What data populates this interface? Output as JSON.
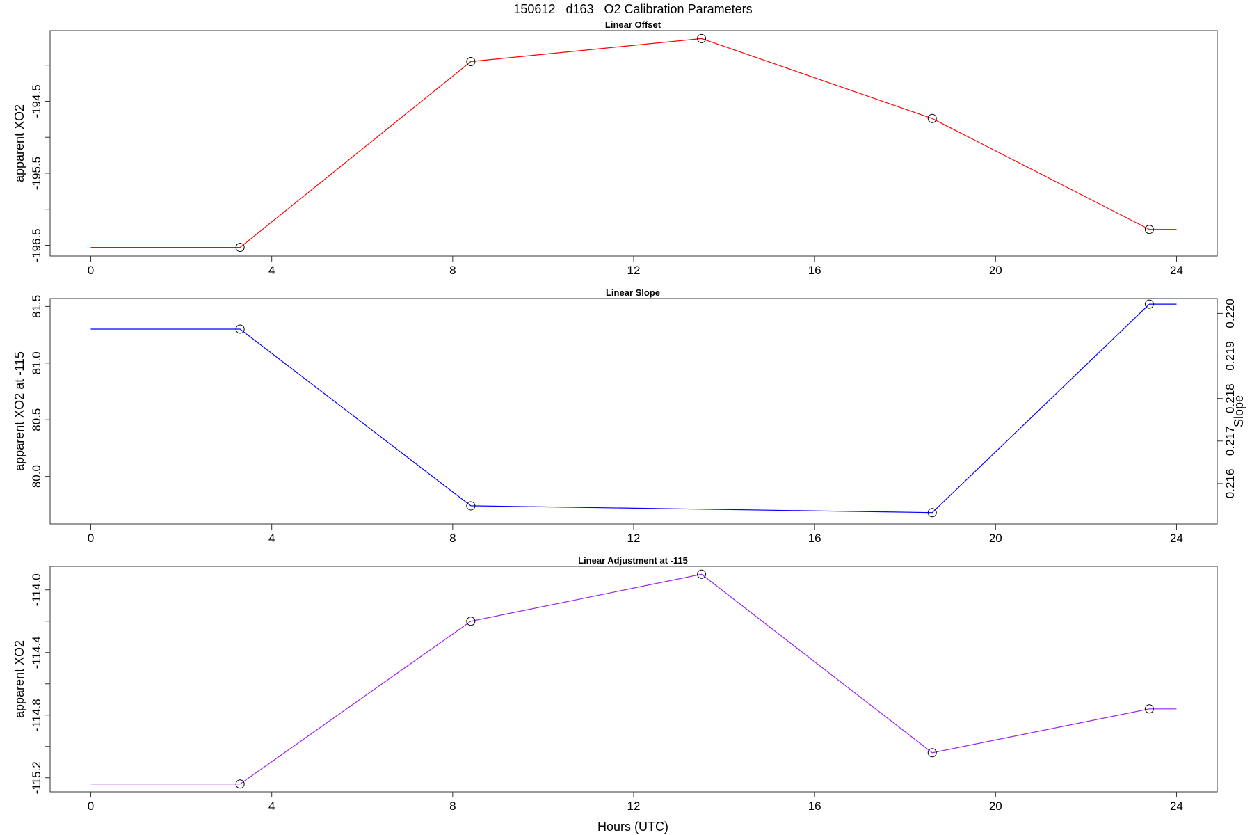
{
  "main_title": "150612   d163   O2 Calibration Parameters",
  "xlabel": "Hours (UTC)",
  "chart_data": [
    {
      "type": "line",
      "title": "Linear Offset",
      "ylabel": "apparent XO2",
      "color": "#ff0000",
      "x": [
        0,
        3.3,
        8.4,
        13.5,
        18.6,
        23.4,
        24
      ],
      "y": [
        -196.53,
        -196.53,
        -193.95,
        -193.63,
        -194.74,
        -196.28,
        -196.28
      ],
      "markers_x": [
        3.3,
        8.4,
        13.5,
        18.6,
        23.4
      ],
      "markers_y": [
        -196.53,
        -193.95,
        -193.63,
        -194.74,
        -196.28
      ],
      "xlim": [
        -0.9,
        24.9
      ],
      "ylim": [
        -196.65,
        -193.52
      ],
      "xticks": [
        0,
        4,
        8,
        12,
        16,
        20,
        24
      ],
      "yticks": [
        -196.5,
        -196.0,
        -195.5,
        -195.0,
        -194.5,
        -194.0
      ],
      "ytick_labels": [
        "-196.5",
        "",
        "-195.5",
        "",
        "-194.5",
        ""
      ]
    },
    {
      "type": "line",
      "title": "Linear Slope",
      "ylabel": "apparent XO2 at -115",
      "right_label": "Slope",
      "color": "#0000ff",
      "x": [
        0,
        3.3,
        8.4,
        18.6,
        23.4,
        24
      ],
      "y": [
        81.3,
        81.3,
        79.74,
        79.68,
        81.52,
        81.52
      ],
      "markers_x": [
        3.3,
        8.4,
        18.6,
        23.4
      ],
      "markers_y": [
        81.3,
        79.74,
        79.68,
        81.52
      ],
      "xlim": [
        -0.9,
        24.9
      ],
      "ylim": [
        79.58,
        81.57
      ],
      "xticks": [
        0,
        4,
        8,
        12,
        16,
        20,
        24
      ],
      "yticks": [
        80.0,
        80.5,
        81.0,
        81.5
      ],
      "ytick_labels": [
        "80.0",
        "80.5",
        "81.0",
        "81.5"
      ],
      "right_ylim": [
        0.21505,
        0.22035
      ],
      "right_ticks": [
        0.216,
        0.217,
        0.218,
        0.219,
        0.22
      ],
      "right_tick_labels": [
        "0.216",
        "0.217",
        "0.218",
        "0.219",
        "0.220"
      ]
    },
    {
      "type": "line",
      "title": "Linear Adjustment at -115",
      "ylabel": "apparent XO2",
      "color": "#a020f0",
      "x": [
        0,
        3.3,
        8.4,
        13.5,
        18.6,
        23.4,
        24
      ],
      "y": [
        -115.24,
        -115.24,
        -114.2,
        -113.9,
        -115.04,
        -114.76,
        -114.76
      ],
      "markers_x": [
        3.3,
        8.4,
        13.5,
        18.6,
        23.4
      ],
      "markers_y": [
        -115.24,
        -114.2,
        -113.9,
        -115.04,
        -114.76
      ],
      "xlim": [
        -0.9,
        24.9
      ],
      "ylim": [
        -115.29,
        -113.85
      ],
      "xticks": [
        0,
        4,
        8,
        12,
        16,
        20,
        24
      ],
      "yticks": [
        -115.2,
        -115.0,
        -114.8,
        -114.6,
        -114.4,
        -114.2,
        -114.0
      ],
      "ytick_labels": [
        "-115.2",
        "",
        "-114.8",
        "",
        "-114.4",
        "",
        "-114.0"
      ]
    }
  ]
}
